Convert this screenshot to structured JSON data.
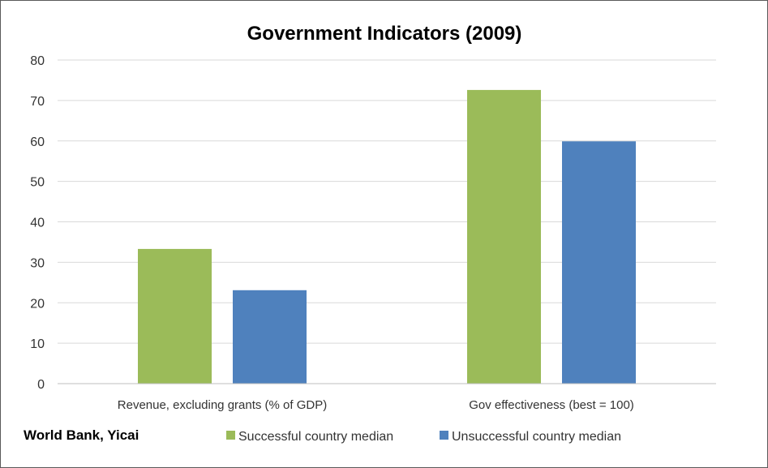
{
  "chart_data": {
    "type": "bar",
    "title": "Government Indicators (2009)",
    "xlabel": "",
    "ylabel": "",
    "ylim": [
      0,
      80
    ],
    "yticks": [
      "0",
      "10",
      "20",
      "30",
      "40",
      "50",
      "60",
      "70",
      "80"
    ],
    "categories": [
      "Revenue, excluding grants (% of GDP)",
      "Gov effectiveness (best = 100)"
    ],
    "series": [
      {
        "name": "Successful country median",
        "values": [
          33.3,
          72.6
        ],
        "color": "#9BBB59"
      },
      {
        "name": "Unsuccessful country median",
        "values": [
          23.1,
          59.9
        ],
        "color": "#4F81BD"
      }
    ],
    "grid": true,
    "legend_position": "bottom",
    "source": "World Bank, Yicai"
  }
}
